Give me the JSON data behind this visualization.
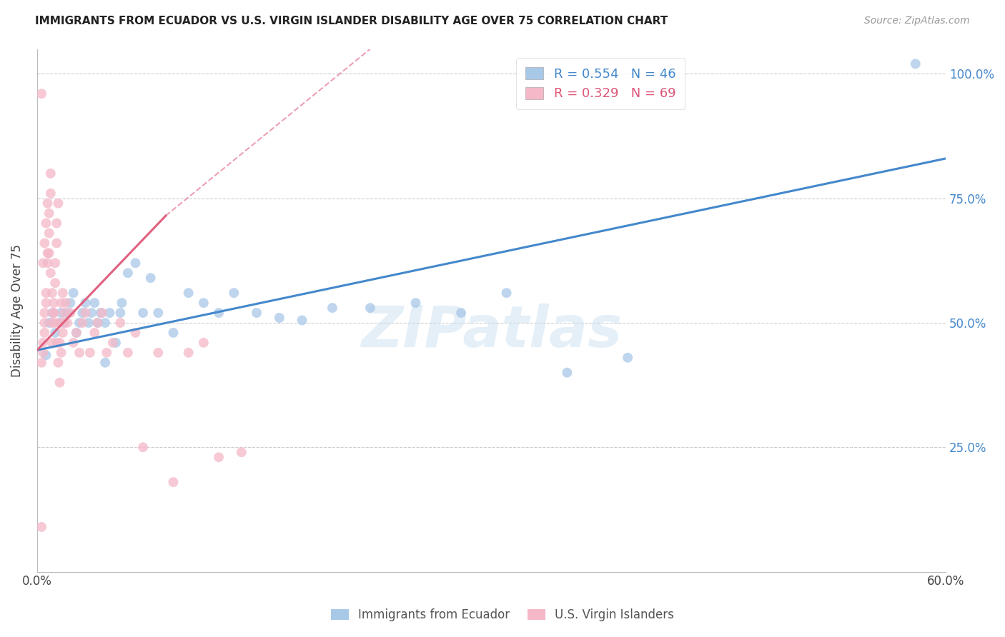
{
  "title": "IMMIGRANTS FROM ECUADOR VS U.S. VIRGIN ISLANDER DISABILITY AGE OVER 75 CORRELATION CHART",
  "source": "Source: ZipAtlas.com",
  "ylabel": "Disability Age Over 75",
  "x_min": 0.0,
  "x_max": 0.6,
  "y_min": 0.0,
  "y_max": 1.05,
  "blue_R": "0.554",
  "blue_N": "46",
  "pink_R": "0.329",
  "pink_N": "69",
  "legend_label_blue": "Immigrants from Ecuador",
  "legend_label_pink": "U.S. Virgin Islanders",
  "watermark": "ZIPatlas",
  "blue_color": "#a8c8e8",
  "pink_color": "#f4b8c8",
  "blue_line_color": "#4488cc",
  "pink_line_color": "#e06080",
  "blue_scatter_x": [
    0.006,
    0.008,
    0.01,
    0.012,
    0.015,
    0.016,
    0.018,
    0.02,
    0.022,
    0.024,
    0.026,
    0.028,
    0.03,
    0.032,
    0.034,
    0.036,
    0.038,
    0.04,
    0.042,
    0.045,
    0.048,
    0.052,
    0.056,
    0.06,
    0.065,
    0.07,
    0.075,
    0.08,
    0.09,
    0.1,
    0.11,
    0.12,
    0.13,
    0.145,
    0.16,
    0.175,
    0.195,
    0.22,
    0.25,
    0.28,
    0.31,
    0.35,
    0.39,
    0.58,
    0.045,
    0.055
  ],
  "blue_scatter_y": [
    0.435,
    0.5,
    0.52,
    0.48,
    0.5,
    0.52,
    0.5,
    0.52,
    0.54,
    0.56,
    0.48,
    0.5,
    0.52,
    0.54,
    0.5,
    0.52,
    0.54,
    0.5,
    0.52,
    0.5,
    0.52,
    0.46,
    0.54,
    0.6,
    0.62,
    0.52,
    0.59,
    0.52,
    0.48,
    0.56,
    0.54,
    0.52,
    0.56,
    0.52,
    0.51,
    0.505,
    0.53,
    0.53,
    0.54,
    0.52,
    0.56,
    0.4,
    0.43,
    1.02,
    0.42,
    0.52
  ],
  "pink_scatter_x": [
    0.003,
    0.003,
    0.004,
    0.004,
    0.005,
    0.005,
    0.005,
    0.006,
    0.006,
    0.007,
    0.007,
    0.008,
    0.008,
    0.009,
    0.009,
    0.01,
    0.01,
    0.011,
    0.011,
    0.012,
    0.012,
    0.013,
    0.013,
    0.014,
    0.015,
    0.015,
    0.016,
    0.017,
    0.018,
    0.019,
    0.02,
    0.022,
    0.024,
    0.026,
    0.028,
    0.03,
    0.032,
    0.035,
    0.038,
    0.04,
    0.043,
    0.046,
    0.05,
    0.055,
    0.06,
    0.065,
    0.07,
    0.08,
    0.09,
    0.1,
    0.11,
    0.12,
    0.135,
    0.003,
    0.004,
    0.005,
    0.006,
    0.007,
    0.008,
    0.009,
    0.01,
    0.011,
    0.012,
    0.013,
    0.014,
    0.015,
    0.016,
    0.017,
    0.018
  ],
  "pink_scatter_y": [
    0.09,
    0.42,
    0.44,
    0.46,
    0.48,
    0.5,
    0.52,
    0.54,
    0.56,
    0.62,
    0.64,
    0.68,
    0.72,
    0.76,
    0.8,
    0.46,
    0.5,
    0.52,
    0.54,
    0.58,
    0.62,
    0.66,
    0.7,
    0.74,
    0.46,
    0.5,
    0.54,
    0.56,
    0.5,
    0.54,
    0.5,
    0.52,
    0.46,
    0.48,
    0.44,
    0.5,
    0.52,
    0.44,
    0.48,
    0.5,
    0.52,
    0.44,
    0.46,
    0.5,
    0.44,
    0.48,
    0.25,
    0.44,
    0.18,
    0.44,
    0.46,
    0.23,
    0.24,
    0.96,
    0.62,
    0.66,
    0.7,
    0.74,
    0.64,
    0.6,
    0.56,
    0.52,
    0.5,
    0.46,
    0.42,
    0.38,
    0.44,
    0.48,
    0.52
  ],
  "blue_trend_x0": 0.0,
  "blue_trend_y0": 0.445,
  "blue_trend_x1": 0.6,
  "blue_trend_y1": 0.83,
  "pink_trend_solid_x0": 0.0,
  "pink_trend_solid_y0": 0.445,
  "pink_trend_solid_x1": 0.085,
  "pink_trend_solid_y1": 0.715,
  "pink_trend_dash_x0": 0.085,
  "pink_trend_dash_y0": 0.715,
  "pink_trend_dash_x1": 0.22,
  "pink_trend_dash_y1": 1.05
}
